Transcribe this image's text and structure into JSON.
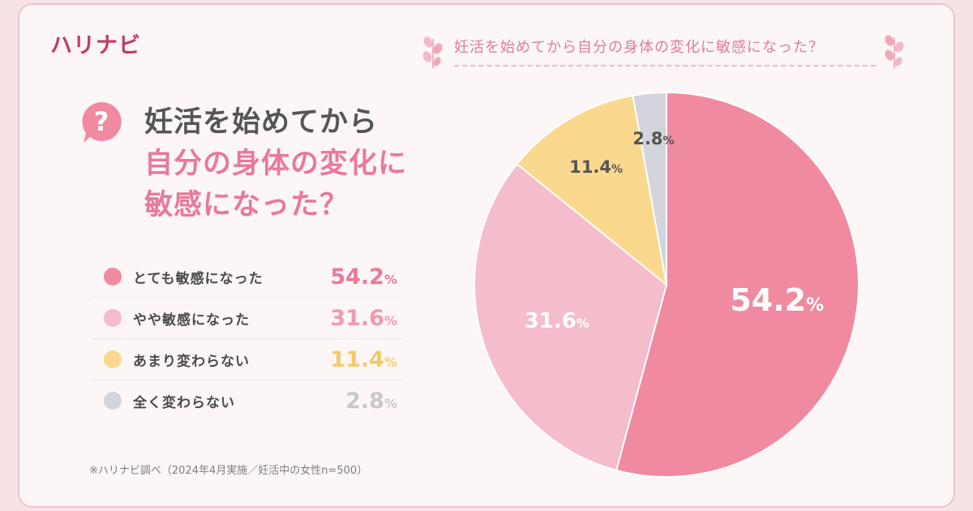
{
  "brand": {
    "logo_text": "ハリナビ"
  },
  "top_question": "妊活を始めてから自分の身体の変化に敏感になった？",
  "headline": {
    "line1": "妊活を始めてから",
    "line2": "自分の身体の変化に",
    "line3": "敏感になった？"
  },
  "question_badge": "?",
  "footnote": "※ハリナビ調べ（2024年4月実施／妊活中の女性n=500）",
  "percent_sign": "%",
  "chart_data": {
    "type": "pie",
    "title": "妊活を始めてから自分の身体の変化に敏感になった？",
    "categories": [
      "とても敏感になった",
      "やや敏感になった",
      "あまり変わらない",
      "全く変わらない"
    ],
    "values": [
      54.2,
      31.6,
      11.4,
      2.8
    ],
    "value_labels": [
      "54.2",
      "31.6",
      "11.4",
      "2.8"
    ],
    "colors": [
      "#f08aa0",
      "#f5bccb",
      "#fad98e",
      "#d3d4dc"
    ],
    "legend_value_colors": [
      "#ec7a96",
      "#f099ae",
      "#f5c86a",
      "#c6c7cf"
    ],
    "slice_label_colors": [
      "#ffffff",
      "#ffffff",
      "#555555",
      "#555555"
    ],
    "start_angle": "12 o'clock",
    "direction": "clockwise",
    "legend_placement": "left"
  }
}
